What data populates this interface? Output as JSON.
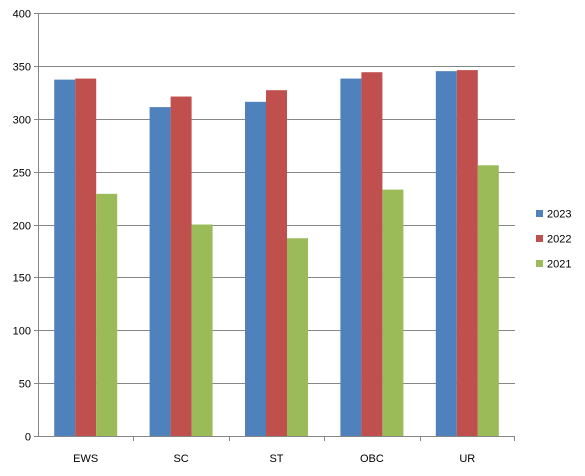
{
  "chart_data": {
    "type": "bar",
    "categories": [
      "EWS",
      "SC",
      "ST",
      "OBC",
      "UR"
    ],
    "series": [
      {
        "name": "2023",
        "color": "#4f81bd",
        "values": [
          337,
          311,
          316,
          338,
          345
        ]
      },
      {
        "name": "2022",
        "color": "#c0504d",
        "values": [
          338,
          321,
          327,
          344,
          346
        ]
      },
      {
        "name": "2021",
        "color": "#9bbb59",
        "values": [
          229,
          200,
          187,
          233,
          256
        ]
      }
    ],
    "title": "",
    "xlabel": "",
    "ylabel": "",
    "ylim": [
      0,
      400
    ],
    "yticks": [
      0,
      50,
      100,
      150,
      200,
      250,
      300,
      350,
      400
    ],
    "grid": true,
    "legend_position": "right"
  }
}
